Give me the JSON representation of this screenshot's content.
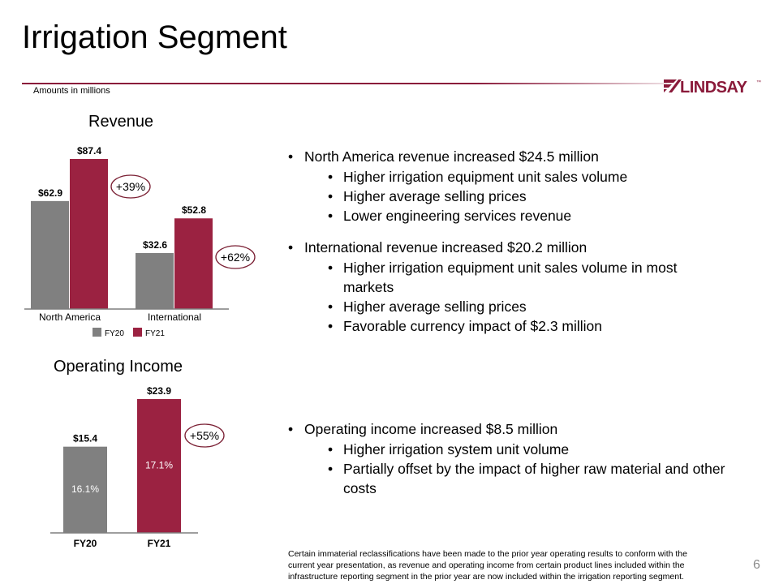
{
  "header": {
    "title": "Irrigation Segment",
    "subnote": "Amounts in millions",
    "logo_text": "LINDSAY",
    "logo_tm": "™"
  },
  "colors": {
    "fy20": "#808080",
    "fy21": "#9b2241",
    "accent": "#8a1a3a",
    "circle": "#7a1f33"
  },
  "revenue": {
    "title": "Revenue",
    "bullets": [
      {
        "text": "North America revenue increased $24.5 million",
        "sub": [
          "Higher irrigation equipment unit sales volume",
          "Higher average selling prices",
          "Lower engineering services revenue"
        ]
      },
      {
        "text": "International revenue increased $20.2 million",
        "sub": [
          "Higher irrigation equipment unit sales volume in most markets",
          "Higher average selling prices",
          "Favorable currency impact of $2.3 million"
        ]
      }
    ]
  },
  "operating_income": {
    "title": "Operating Income",
    "bullets": [
      {
        "text": "Operating income increased $8.5 million",
        "sub": [
          "Higher irrigation system unit volume",
          "Partially offset by the impact of higher raw material and other costs"
        ]
      }
    ]
  },
  "chart_data": [
    {
      "type": "bar",
      "title": "Revenue",
      "categories": [
        "North America",
        "International"
      ],
      "series": [
        {
          "name": "FY20",
          "values": [
            62.9,
            32.6
          ],
          "labels": [
            "$62.9",
            "$32.6"
          ]
        },
        {
          "name": "FY21",
          "values": [
            87.4,
            52.8
          ],
          "labels": [
            "$87.4",
            "$52.8"
          ]
        }
      ],
      "growth_labels": [
        "+39%",
        "+62%"
      ],
      "legend": [
        "FY20",
        "FY21"
      ],
      "ylim": [
        0,
        90
      ]
    },
    {
      "type": "bar",
      "title": "Operating Income",
      "categories": [
        "FY20",
        "FY21"
      ],
      "values": [
        15.4,
        23.9
      ],
      "labels": [
        "$15.4",
        "$23.9"
      ],
      "margins": [
        "16.1%",
        "17.1%"
      ],
      "growth_label": "+55%",
      "ylim": [
        0,
        24
      ]
    }
  ],
  "footnote": "Certain immaterial reclassifications have been made to the prior year operating results to conform with the current year presentation, as revenue and operating income from certain product lines included within the infrastructure reporting segment in the prior year are now included within the irrigation reporting segment.",
  "page_number": "6"
}
